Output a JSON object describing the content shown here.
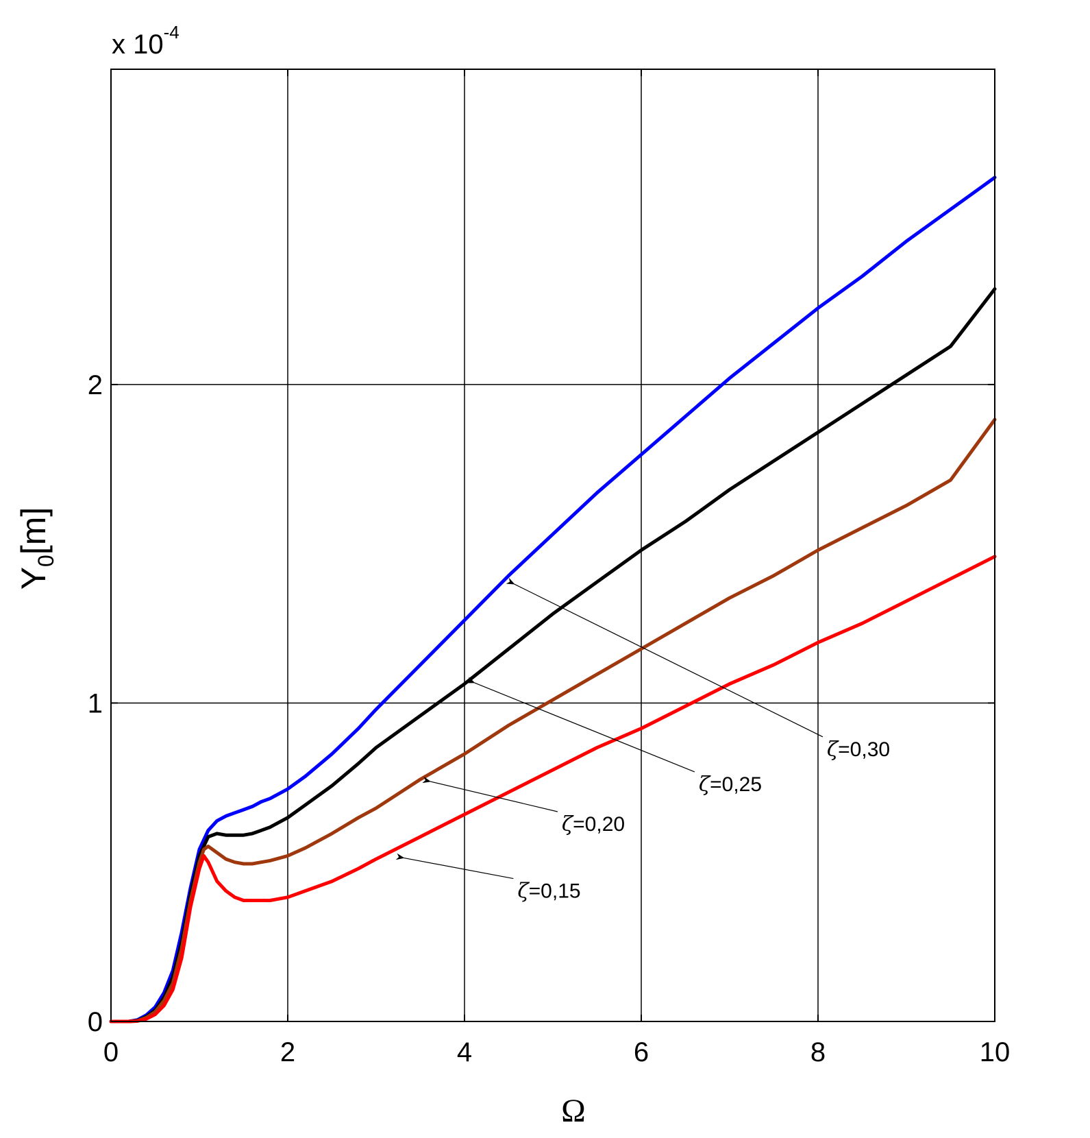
{
  "chart_data": {
    "type": "line",
    "xlabel": "Ω",
    "ylabel": {
      "main": "Y",
      "sub": "0",
      "unit": "[m]"
    },
    "y_exponent": {
      "base": "x 10",
      "power": "-4"
    },
    "xlim": [
      0,
      10
    ],
    "ylim": [
      0,
      2.99
    ],
    "grid": true,
    "x_ticks": [
      0,
      2,
      4,
      6,
      8,
      10
    ],
    "x_tick_labels": [
      "0",
      "2",
      "4",
      "6",
      "8",
      "10"
    ],
    "y_ticks": [
      0,
      1,
      2
    ],
    "y_tick_labels": [
      "0",
      "1",
      "2"
    ],
    "series": [
      {
        "color": "#0000ff",
        "x": [
          0,
          0.2,
          0.3,
          0.4,
          0.5,
          0.6,
          0.7,
          0.8,
          0.9,
          1.0,
          1.1,
          1.2,
          1.3,
          1.4,
          1.5,
          1.6,
          1.7,
          1.8,
          2.0,
          2.2,
          2.5,
          2.8,
          3.0,
          3.5,
          4.0,
          4.5,
          5.0,
          5.5,
          6.0,
          6.5,
          7.0,
          7.5,
          8.0,
          8.5,
          9.0,
          9.5,
          10.0
        ],
        "values": [
          0,
          0,
          0.005,
          0.02,
          0.045,
          0.09,
          0.16,
          0.28,
          0.42,
          0.54,
          0.6,
          0.63,
          0.645,
          0.655,
          0.665,
          0.675,
          0.69,
          0.7,
          0.73,
          0.77,
          0.84,
          0.92,
          0.98,
          1.12,
          1.26,
          1.4,
          1.53,
          1.66,
          1.78,
          1.9,
          2.02,
          2.13,
          2.24,
          2.34,
          2.45,
          2.55,
          2.65
        ]
      },
      {
        "color": "#000000",
        "x": [
          0,
          0.2,
          0.3,
          0.4,
          0.5,
          0.6,
          0.7,
          0.8,
          0.9,
          1.0,
          1.1,
          1.2,
          1.3,
          1.4,
          1.5,
          1.6,
          1.7,
          1.8,
          2.0,
          2.2,
          2.5,
          2.8,
          3.0,
          3.5,
          4.0,
          4.5,
          5.0,
          5.5,
          6.0,
          6.5,
          7.0,
          7.5,
          8.0,
          8.5,
          9.0,
          9.5,
          10.0
        ],
        "values": [
          0,
          0,
          0.003,
          0.015,
          0.035,
          0.075,
          0.14,
          0.25,
          0.4,
          0.52,
          0.58,
          0.59,
          0.585,
          0.585,
          0.585,
          0.59,
          0.6,
          0.61,
          0.64,
          0.68,
          0.74,
          0.81,
          0.86,
          0.96,
          1.06,
          1.17,
          1.28,
          1.38,
          1.48,
          1.57,
          1.67,
          1.76,
          1.85,
          1.94,
          2.03,
          2.12,
          2.3
        ]
      },
      {
        "color": "#a0380e",
        "x": [
          0,
          0.2,
          0.3,
          0.4,
          0.5,
          0.6,
          0.7,
          0.8,
          0.9,
          1.0,
          1.05,
          1.1,
          1.2,
          1.3,
          1.4,
          1.5,
          1.6,
          1.7,
          1.8,
          2.0,
          2.2,
          2.5,
          2.8,
          3.0,
          3.5,
          4.0,
          4.5,
          5.0,
          5.5,
          6.0,
          6.5,
          7.0,
          7.5,
          8.0,
          8.5,
          9.0,
          9.5,
          10.0
        ],
        "values": [
          0,
          0,
          0.002,
          0.012,
          0.03,
          0.065,
          0.12,
          0.23,
          0.38,
          0.5,
          0.54,
          0.55,
          0.53,
          0.51,
          0.5,
          0.495,
          0.495,
          0.5,
          0.505,
          0.52,
          0.545,
          0.59,
          0.64,
          0.67,
          0.76,
          0.84,
          0.93,
          1.01,
          1.09,
          1.17,
          1.25,
          1.33,
          1.4,
          1.48,
          1.55,
          1.62,
          1.7,
          1.89
        ]
      },
      {
        "color": "#ff0000",
        "x": [
          0,
          0.2,
          0.3,
          0.4,
          0.5,
          0.6,
          0.7,
          0.8,
          0.9,
          1.0,
          1.05,
          1.1,
          1.15,
          1.2,
          1.3,
          1.4,
          1.5,
          1.6,
          1.7,
          1.8,
          2.0,
          2.2,
          2.5,
          2.8,
          3.0,
          3.5,
          4.0,
          4.5,
          5.0,
          5.5,
          6.0,
          6.5,
          7.0,
          7.5,
          8.0,
          8.5,
          9.0,
          9.5,
          10.0
        ],
        "values": [
          0,
          0,
          0.001,
          0.008,
          0.022,
          0.05,
          0.1,
          0.2,
          0.36,
          0.48,
          0.52,
          0.5,
          0.47,
          0.44,
          0.41,
          0.39,
          0.38,
          0.38,
          0.38,
          0.38,
          0.39,
          0.41,
          0.44,
          0.48,
          0.51,
          0.58,
          0.65,
          0.72,
          0.79,
          0.86,
          0.92,
          0.99,
          1.06,
          1.12,
          1.19,
          1.25,
          1.32,
          1.39,
          1.46
        ]
      }
    ],
    "annotations": [
      {
        "symbol": "ζ",
        "value": "=0,30",
        "text_at": [
          8.1,
          0.855
        ],
        "arrow_to": [
          4.5,
          1.38
        ]
      },
      {
        "symbol": "ζ",
        "value": "=0,25",
        "text_at": [
          6.65,
          0.745
        ],
        "arrow_to": [
          4.05,
          1.07
        ]
      },
      {
        "symbol": "ζ",
        "value": "=0,20",
        "text_at": [
          5.1,
          0.62
        ],
        "arrow_to": [
          3.55,
          0.76
        ]
      },
      {
        "symbol": "ζ",
        "value": "=0,15",
        "text_at": [
          4.6,
          0.41
        ],
        "arrow_to": [
          3.25,
          0.52
        ]
      }
    ]
  }
}
